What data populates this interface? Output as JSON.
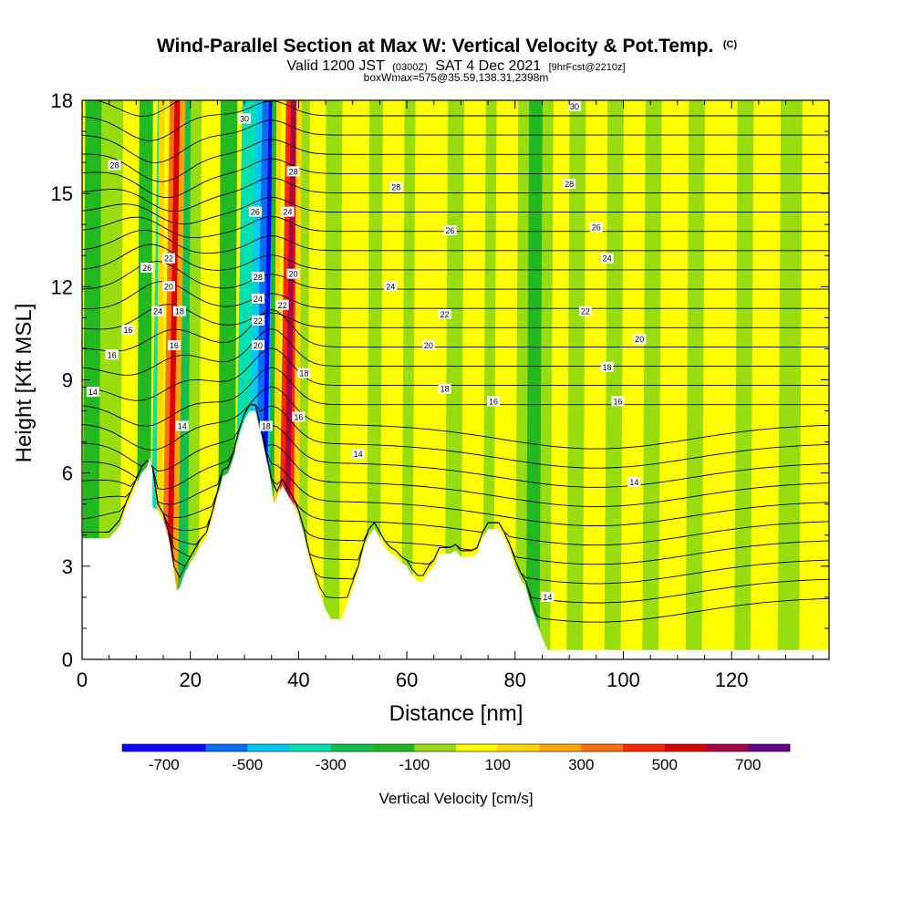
{
  "title": {
    "main": "Wind-Parallel Section at Max W: Vertical Velocity & Pot.Temp.",
    "tag": "(C)",
    "line2_a": "Valid 1200 JST",
    "line2_b": "(0300Z)",
    "line2_c": "SAT 4 Dec 2021",
    "line2_d": "[9hrFcst@2210z]",
    "line3": "boxWmax=575@35.59,138.31,2398m"
  },
  "colors": {
    "terrain": "#ffffff",
    "contour": "#000000",
    "colorbar": [
      "#0a06f5",
      "#0b6cf7",
      "#02c8f4",
      "#00e0b0",
      "#10c050",
      "#22b822",
      "#99dd11",
      "#ffff00",
      "#ffd700",
      "#ffa500",
      "#ff7010",
      "#ff2800",
      "#dd0000",
      "#aa0044",
      "#660088"
    ]
  },
  "chart_data": {
    "type": "heatmap",
    "xlabel": "Distance [nm]",
    "ylabel": "Height [Kft MSL]",
    "xlim": [
      0,
      138
    ],
    "ylim": [
      0,
      18
    ],
    "xticks": [
      "0",
      "20",
      "40",
      "60",
      "80",
      "100",
      "120"
    ],
    "yticks": [
      "0",
      "3",
      "6",
      "9",
      "12",
      "15",
      "18"
    ],
    "colorbar": {
      "title": "Vertical Velocity [cm/s]",
      "ticks": [
        "-700",
        "-500",
        "-300",
        "-100",
        "100",
        "300",
        "500",
        "700"
      ],
      "bounds": [
        -800,
        -600,
        -500,
        -400,
        -300,
        -200,
        -100,
        0,
        100,
        200,
        300,
        400,
        500,
        600,
        700,
        800
      ]
    },
    "terrain_profile": [
      [
        0,
        3.9
      ],
      [
        5,
        3.9
      ],
      [
        7,
        4.3
      ],
      [
        8,
        4.8
      ],
      [
        10,
        5.6
      ],
      [
        11,
        6.0
      ],
      [
        12,
        6.2
      ],
      [
        12.5,
        6.5
      ],
      [
        13,
        6.0
      ],
      [
        13,
        4.9
      ],
      [
        14,
        4.8
      ],
      [
        15,
        4.5
      ],
      [
        16,
        3.9
      ],
      [
        16.5,
        3.4
      ],
      [
        17,
        2.8
      ],
      [
        17.5,
        2.2
      ],
      [
        18,
        2.3
      ],
      [
        19,
        2.8
      ],
      [
        20,
        3.1
      ],
      [
        21,
        3.4
      ],
      [
        22,
        3.7
      ],
      [
        23,
        3.9
      ],
      [
        24,
        4.5
      ],
      [
        25,
        5.2
      ],
      [
        26,
        5.9
      ],
      [
        27,
        6.0
      ],
      [
        28,
        6.5
      ],
      [
        29,
        7.2
      ],
      [
        30,
        7.7
      ],
      [
        31,
        8.0
      ],
      [
        32,
        8.0
      ],
      [
        33,
        7.3
      ],
      [
        34,
        6.5
      ],
      [
        35,
        5.6
      ],
      [
        35.5,
        5.0
      ],
      [
        36,
        5.2
      ],
      [
        37,
        5.6
      ],
      [
        38,
        5.3
      ],
      [
        39,
        5.0
      ],
      [
        40,
        4.6
      ],
      [
        41,
        4.0
      ],
      [
        42,
        3.2
      ],
      [
        43,
        2.6
      ],
      [
        44,
        2.1
      ],
      [
        45,
        1.6
      ],
      [
        46,
        1.3
      ],
      [
        48,
        1.3
      ],
      [
        49,
        1.8
      ],
      [
        50,
        2.3
      ],
      [
        51,
        2.8
      ],
      [
        52,
        3.5
      ],
      [
        53,
        4.0
      ],
      [
        54,
        4.2
      ],
      [
        55,
        3.9
      ],
      [
        56,
        3.6
      ],
      [
        57,
        3.4
      ],
      [
        58,
        3.3
      ],
      [
        59,
        3.1
      ],
      [
        60,
        3.0
      ],
      [
        61,
        2.7
      ],
      [
        62,
        2.5
      ],
      [
        63,
        2.5
      ],
      [
        64,
        2.8
      ],
      [
        65,
        3.0
      ],
      [
        66,
        3.4
      ],
      [
        68,
        3.4
      ],
      [
        69,
        3.5
      ],
      [
        70,
        3.3
      ],
      [
        72,
        3.3
      ],
      [
        73,
        3.4
      ],
      [
        74,
        3.9
      ],
      [
        75,
        4.2
      ],
      [
        77,
        4.2
      ],
      [
        78,
        3.9
      ],
      [
        79,
        3.5
      ],
      [
        80,
        3.0
      ],
      [
        81,
        2.6
      ],
      [
        82,
        2.3
      ],
      [
        83,
        1.7
      ],
      [
        84,
        1.2
      ],
      [
        85,
        0.7
      ],
      [
        86,
        0.3
      ],
      [
        87,
        0.3
      ],
      [
        138,
        0.3
      ]
    ],
    "velocity_bands": [
      {
        "x": 0,
        "w": 3,
        "v": -150
      },
      {
        "x": 3,
        "w": 4,
        "v": -50
      },
      {
        "x": 7,
        "w": 3,
        "v": 50
      },
      {
        "x": 10,
        "w": 2.4,
        "v": -150
      },
      {
        "x": 12.4,
        "w": 1.2,
        "v": -350
      },
      {
        "x": 13.6,
        "w": 1.0,
        "v": 150
      },
      {
        "x": 14.6,
        "w": 0.9,
        "v": 350
      },
      {
        "x": 15.5,
        "w": 1.0,
        "v": 550
      },
      {
        "x": 16.5,
        "w": 1.0,
        "v": 250
      },
      {
        "x": 17.5,
        "w": 2.0,
        "v": -250
      },
      {
        "x": 19.5,
        "w": 2.0,
        "v": -50
      },
      {
        "x": 21.5,
        "w": 3.5,
        "v": 50
      },
      {
        "x": 25,
        "w": 3,
        "v": -150
      },
      {
        "x": 28,
        "w": 2.5,
        "v": -350
      },
      {
        "x": 30.5,
        "w": 1.2,
        "v": -450
      },
      {
        "x": 31.7,
        "w": 1.2,
        "v": -550
      },
      {
        "x": 32.9,
        "w": 0.8,
        "v": -650
      },
      {
        "x": 33.7,
        "w": 0.8,
        "v": -450
      },
      {
        "x": 34.5,
        "w": 0.8,
        "v": -150
      },
      {
        "x": 35.3,
        "w": 0.8,
        "v": 150
      },
      {
        "x": 36.1,
        "w": 0.9,
        "v": 450
      },
      {
        "x": 37.0,
        "w": 1.0,
        "v": 650
      },
      {
        "x": 38.0,
        "w": 1.0,
        "v": 450
      },
      {
        "x": 39.0,
        "w": 1.0,
        "v": 150
      },
      {
        "x": 40,
        "w": 1.5,
        "v": -50
      },
      {
        "x": 41.5,
        "w": 3,
        "v": 50
      },
      {
        "x": 44.5,
        "w": 3,
        "v": -50
      },
      {
        "x": 47.5,
        "w": 5,
        "v": 50
      },
      {
        "x": 52.5,
        "w": 2.5,
        "v": -50
      },
      {
        "x": 55,
        "w": 4,
        "v": 50
      },
      {
        "x": 59,
        "w": 2,
        "v": -50
      },
      {
        "x": 61,
        "w": 6,
        "v": 50
      },
      {
        "x": 67,
        "w": 3,
        "v": -50
      },
      {
        "x": 70,
        "w": 4,
        "v": 50
      },
      {
        "x": 74,
        "w": 2,
        "v": -50
      },
      {
        "x": 76,
        "w": 4,
        "v": 50
      },
      {
        "x": 80,
        "w": 2,
        "v": -50
      },
      {
        "x": 82,
        "w": 2.5,
        "v": -150
      },
      {
        "x": 84.5,
        "w": 2,
        "v": -50
      },
      {
        "x": 86.5,
        "w": 3,
        "v": 50
      },
      {
        "x": 89.5,
        "w": 3,
        "v": -50
      },
      {
        "x": 92.5,
        "w": 4,
        "v": 50
      },
      {
        "x": 96.5,
        "w": 3,
        "v": -50
      },
      {
        "x": 99.5,
        "w": 4,
        "v": 50
      },
      {
        "x": 103.5,
        "w": 3,
        "v": -50
      },
      {
        "x": 106.5,
        "w": 5,
        "v": 50
      },
      {
        "x": 111.5,
        "w": 3,
        "v": -50
      },
      {
        "x": 114.5,
        "w": 6,
        "v": 50
      },
      {
        "x": 120.5,
        "w": 3,
        "v": -50
      },
      {
        "x": 123.5,
        "w": 5,
        "v": 50
      },
      {
        "x": 128.5,
        "w": 4,
        "v": -50
      },
      {
        "x": 132.5,
        "w": 5.5,
        "v": 50
      }
    ],
    "contour_labels": [
      {
        "text": "30",
        "x": 30,
        "y": 17.4
      },
      {
        "text": "30",
        "x": 91,
        "y": 17.8
      },
      {
        "text": "28",
        "x": 6,
        "y": 15.9
      },
      {
        "text": "28",
        "x": 39,
        "y": 15.7
      },
      {
        "text": "28",
        "x": 58,
        "y": 15.2
      },
      {
        "text": "28",
        "x": 90,
        "y": 15.3
      },
      {
        "text": "26",
        "x": 32,
        "y": 14.4
      },
      {
        "text": "26",
        "x": 68,
        "y": 13.8
      },
      {
        "text": "26",
        "x": 95,
        "y": 13.9
      },
      {
        "text": "24",
        "x": 38,
        "y": 14.4
      },
      {
        "text": "24",
        "x": 57,
        "y": 12.0
      },
      {
        "text": "24",
        "x": 97,
        "y": 12.9
      },
      {
        "text": "26",
        "x": 12,
        "y": 12.6
      },
      {
        "text": "22",
        "x": 16,
        "y": 12.9
      },
      {
        "text": "20",
        "x": 16,
        "y": 12.0
      },
      {
        "text": "24",
        "x": 14,
        "y": 11.2
      },
      {
        "text": "18",
        "x": 18,
        "y": 11.2
      },
      {
        "text": "28",
        "x": 32.5,
        "y": 12.3
      },
      {
        "text": "24",
        "x": 32.5,
        "y": 11.6
      },
      {
        "text": "20",
        "x": 39,
        "y": 12.4
      },
      {
        "text": "22",
        "x": 37,
        "y": 11.4
      },
      {
        "text": "22",
        "x": 32.5,
        "y": 10.9
      },
      {
        "text": "20",
        "x": 32.5,
        "y": 10.1
      },
      {
        "text": "22",
        "x": 67,
        "y": 11.1
      },
      {
        "text": "22",
        "x": 93,
        "y": 11.2
      },
      {
        "text": "20",
        "x": 64,
        "y": 10.1
      },
      {
        "text": "20",
        "x": 103,
        "y": 10.3
      },
      {
        "text": "16",
        "x": 8.5,
        "y": 10.6
      },
      {
        "text": "16",
        "x": 5.5,
        "y": 9.8
      },
      {
        "text": "16",
        "x": 17,
        "y": 10.1
      },
      {
        "text": "18",
        "x": 41,
        "y": 9.2
      },
      {
        "text": "18",
        "x": 67,
        "y": 8.7
      },
      {
        "text": "18",
        "x": 97,
        "y": 9.4
      },
      {
        "text": "14",
        "x": 2,
        "y": 8.6
      },
      {
        "text": "16",
        "x": 76,
        "y": 8.3
      },
      {
        "text": "16",
        "x": 99,
        "y": 8.3
      },
      {
        "text": "16",
        "x": 40,
        "y": 7.8
      },
      {
        "text": "18",
        "x": 34,
        "y": 7.5
      },
      {
        "text": "14",
        "x": 18.5,
        "y": 7.5
      },
      {
        "text": "14",
        "x": 51,
        "y": 6.6
      },
      {
        "text": "14",
        "x": 102,
        "y": 5.7
      },
      {
        "text": "14",
        "x": 86,
        "y": 2.0
      }
    ]
  }
}
